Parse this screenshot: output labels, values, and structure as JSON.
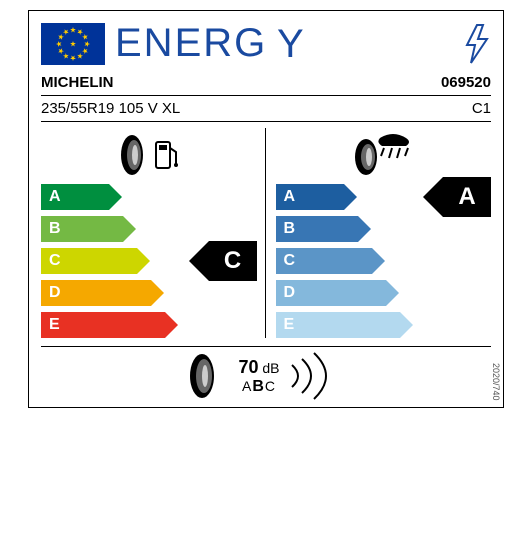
{
  "header": {
    "title": "ENERG"
  },
  "brand": "MICHELIN",
  "model_code": "069520",
  "spec": "235/55R19 105 V XL",
  "class_code": "C1",
  "bar_letters": [
    "A",
    "B",
    "C",
    "D",
    "E"
  ],
  "fuel": {
    "colors": [
      "#008f3f",
      "#74b944",
      "#cdd600",
      "#f5a800",
      "#e83123"
    ],
    "widths": [
      60,
      74,
      88,
      102,
      116
    ],
    "rating": "C",
    "rating_index": 2
  },
  "wet": {
    "colors": [
      "#1d5ea0",
      "#3876b4",
      "#5b95c7",
      "#84b8dc",
      "#b3d9ef"
    ],
    "widths": [
      60,
      74,
      88,
      102,
      116
    ],
    "rating": "A",
    "rating_index": 0
  },
  "noise": {
    "db_value": "70",
    "db_unit": "dB",
    "classes": [
      "A",
      "B",
      "C"
    ],
    "selected_class": "B"
  },
  "regulation": "2020/740"
}
